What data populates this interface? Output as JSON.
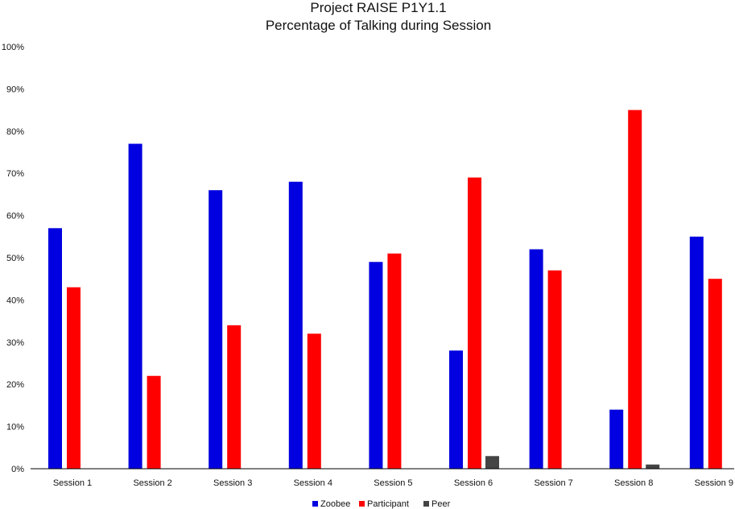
{
  "chart_data": {
    "type": "bar",
    "title": "Project RAISE P1Y1.1",
    "subtitle": "Percentage of Talking during Session",
    "xlabel": "",
    "ylabel": "",
    "ylim": [
      0,
      100
    ],
    "yticks": [
      "0%",
      "10%",
      "20%",
      "30%",
      "40%",
      "50%",
      "60%",
      "70%",
      "80%",
      "90%",
      "100%"
    ],
    "grid": false,
    "legend_position": "bottom",
    "categories": [
      "Session 1",
      "Session 2",
      "Session 3",
      "Session 4",
      "Session 5",
      "Session 6",
      "Session 7",
      "Session 8",
      "Session 9"
    ],
    "series": [
      {
        "name": "Zoobee",
        "color": "#0000e0",
        "values": [
          57,
          77,
          66,
          68,
          49,
          28,
          52,
          14,
          55
        ]
      },
      {
        "name": "Participant",
        "color": "#ff0000",
        "values": [
          43,
          22,
          34,
          32,
          51,
          69,
          47,
          85,
          45
        ]
      },
      {
        "name": "Peer",
        "color": "#444444",
        "values": [
          null,
          null,
          null,
          null,
          null,
          3,
          null,
          1,
          null
        ]
      }
    ]
  }
}
